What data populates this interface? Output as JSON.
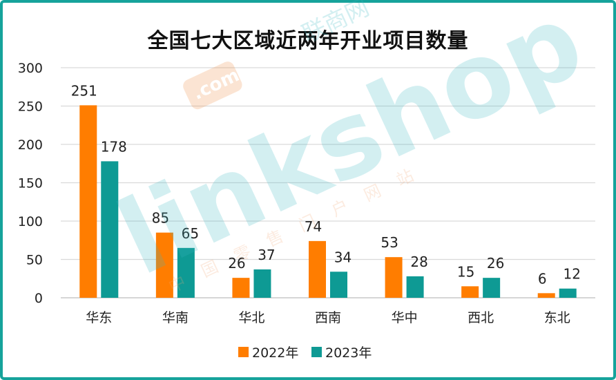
{
  "chart_data": {
    "type": "bar",
    "title": "全国七大区域近两年开业项目数量",
    "categories": [
      "华东",
      "华南",
      "华北",
      "西南",
      "华中",
      "西北",
      "东北"
    ],
    "series": [
      {
        "name": "2022年",
        "values": [
          251,
          85,
          26,
          74,
          53,
          15,
          6
        ],
        "color": "#ff7d00"
      },
      {
        "name": "2023年",
        "values": [
          178,
          65,
          37,
          34,
          28,
          26,
          12
        ],
        "color": "#0e9a94"
      }
    ],
    "yticks": [
      0,
      50,
      100,
      150,
      200,
      250,
      300
    ],
    "ylim": [
      0,
      300
    ],
    "grid": true,
    "legend": "bottom"
  },
  "watermark": {
    "logo": "linkshop",
    "com": ".com",
    "cn_name": "联商网",
    "subtitle": "中国零售门户网站"
  }
}
